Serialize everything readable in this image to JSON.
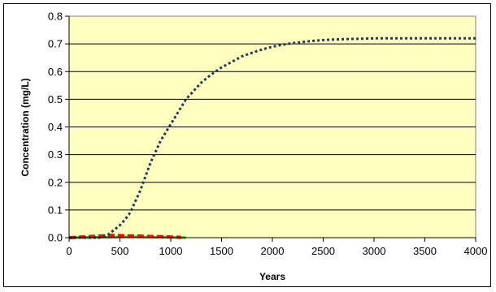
{
  "chart_data": {
    "type": "line",
    "title": "",
    "xlabel": "Years",
    "ylabel": "Concentration (mg/L)",
    "xlim": [
      0,
      4000
    ],
    "ylim": [
      0,
      0.8
    ],
    "xticks": [
      0,
      500,
      1000,
      1500,
      2000,
      2500,
      3000,
      3500,
      4000
    ],
    "yticks": [
      0.0,
      0.1,
      0.2,
      0.3,
      0.4,
      0.5,
      0.6,
      0.7,
      0.8
    ],
    "ytick_labels": [
      "0.0",
      "0.1",
      "0.2",
      "0.3",
      "0.4",
      "0.5",
      "0.6",
      "0.7",
      "0.8"
    ],
    "grid": "horizontal",
    "legend": "none",
    "plot_background": "#ffffc0",
    "series": [
      {
        "color": "#1f3a5a",
        "style": "dotted",
        "x": [
          0,
          300,
          380,
          450,
          500,
          550,
          600,
          650,
          700,
          750,
          800,
          850,
          900,
          950,
          1000,
          1050,
          1100,
          1150,
          1200,
          1300,
          1400,
          1500,
          1600,
          1700,
          1800,
          1900,
          2000,
          2100,
          2200,
          2300,
          2400,
          2500,
          2700,
          3000,
          3500,
          4000
        ],
        "y": [
          0.0,
          0.0,
          0.01,
          0.03,
          0.045,
          0.065,
          0.09,
          0.13,
          0.17,
          0.22,
          0.27,
          0.31,
          0.35,
          0.38,
          0.41,
          0.44,
          0.47,
          0.5,
          0.52,
          0.56,
          0.59,
          0.615,
          0.635,
          0.655,
          0.668,
          0.68,
          0.69,
          0.697,
          0.703,
          0.707,
          0.711,
          0.714,
          0.717,
          0.72,
          0.72,
          0.72
        ]
      },
      {
        "color": "#ff0000",
        "style": "dashed",
        "x": [
          0,
          150,
          300,
          380,
          450,
          550,
          650,
          750,
          850,
          950,
          1050,
          1100
        ],
        "y": [
          0.0,
          0.003,
          0.006,
          0.008,
          0.008,
          0.007,
          0.006,
          0.005,
          0.004,
          0.003,
          0.002,
          0.001
        ]
      },
      {
        "color": "#00cc00",
        "style": "solid",
        "x": [
          0,
          200,
          400,
          600,
          800,
          1000,
          1150
        ],
        "y": [
          0.0,
          0.001,
          0.002,
          0.003,
          0.002,
          0.001,
          0.0
        ]
      }
    ]
  }
}
